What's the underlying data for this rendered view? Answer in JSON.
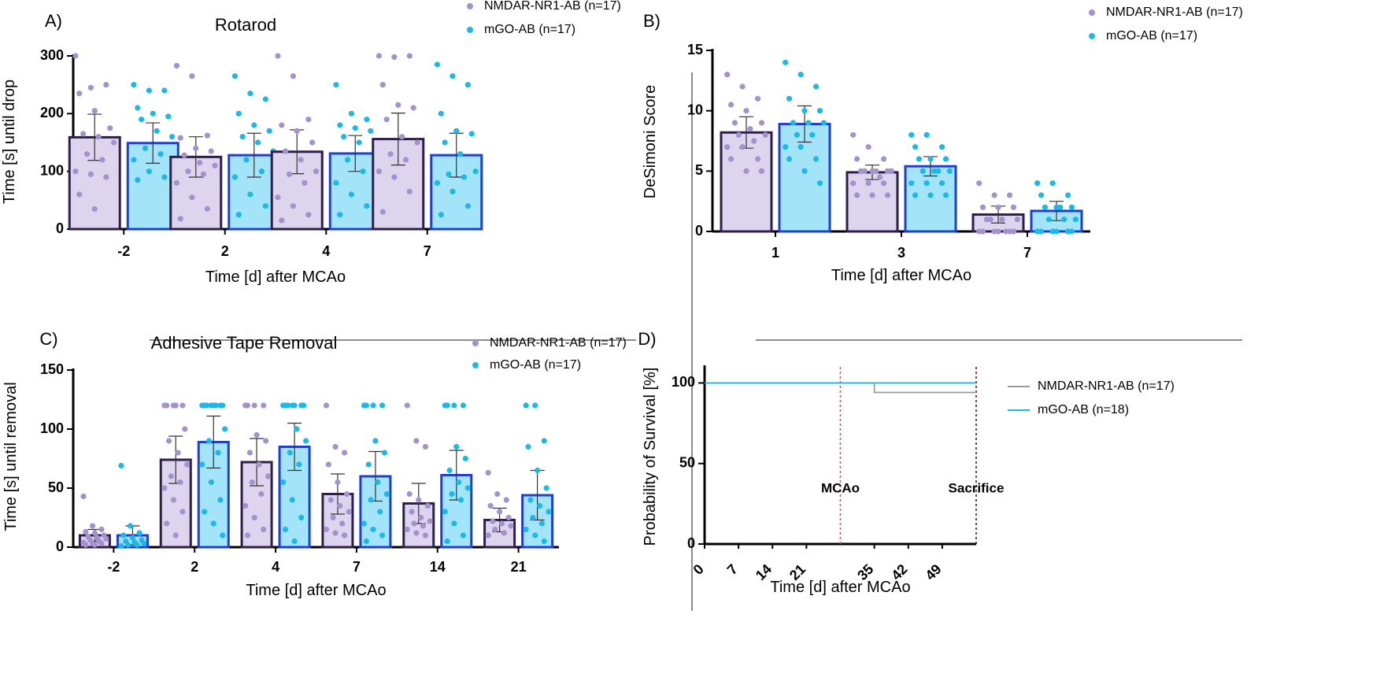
{
  "colors": {
    "purple": "#a392cc",
    "purple_fill": "#ddd4ee",
    "purple_edge": "#2e1f4a",
    "cyan": "#1eb8e6",
    "cyan_fill": "#a3e4f8",
    "cyan_edge": "#1c3fd6",
    "grey": "#9a9a9a",
    "red": "#e05060",
    "darkred": "#5a1820"
  },
  "chart_data": [
    {
      "panel": "A)",
      "type": "bar",
      "title": "Rotarod",
      "xlabel": "Time [d] after MCAo",
      "ylabel": "Time [s] until drop",
      "categories": [
        "-2",
        "2",
        "4",
        "7"
      ],
      "ylim": [
        0,
        300
      ],
      "yticks": [
        0,
        100,
        200,
        300
      ],
      "series": [
        {
          "name": "NMDAR-NR1-AB (n=17)",
          "values": [
            159,
            125,
            134,
            156
          ],
          "err": [
            40,
            35,
            38,
            45
          ],
          "points": [
            [
              300,
              245,
              250,
              235,
              205,
              175,
              165,
              160,
              150,
              130,
              120,
              100,
              95,
              90,
              60,
              35
            ],
            [
              283,
              265,
              162,
              158,
              140,
              135,
              128,
              115,
              110,
              100,
              95,
              80,
              55,
              35,
              18
            ],
            [
              300,
              265,
              190,
              180,
              170,
              150,
              135,
              120,
              100,
              95,
              80,
              55,
              40,
              25,
              15
            ],
            [
              300,
              298,
              300,
              250,
              215,
              210,
              190,
              160,
              150,
              130,
              120,
              100,
              90,
              65,
              30
            ]
          ]
        },
        {
          "name": "mGO-AB (n=17)",
          "values": [
            149,
            128,
            131,
            128
          ],
          "err": [
            35,
            38,
            31,
            38
          ],
          "points": [
            [
              250,
              240,
              240,
              210,
              200,
              195,
              190,
              170,
              160,
              140,
              130,
              120,
              100,
              90,
              85
            ],
            [
              265,
              235,
              225,
              200,
              180,
              170,
              160,
              150,
              135,
              120,
              100,
              90,
              60,
              40,
              25
            ],
            [
              250,
              200,
              190,
              180,
              175,
              170,
              160,
              150,
              130,
              120,
              100,
              80,
              60,
              40,
              25
            ],
            [
              285,
              265,
              250,
              200,
              170,
              165,
              150,
              130,
              100,
              95,
              90,
              80,
              65,
              40,
              25
            ]
          ]
        }
      ]
    },
    {
      "panel": "B)",
      "type": "bar",
      "title": "",
      "xlabel": "Time [d] after MCAo",
      "ylabel": "DeSimoni Score",
      "categories": [
        "1",
        "3",
        "7"
      ],
      "ylim": [
        0,
        15
      ],
      "yticks": [
        0,
        5,
        10,
        15
      ],
      "series": [
        {
          "name": "NMDAR-NR1-AB (n=17)",
          "values": [
            8.2,
            4.9,
            1.4
          ],
          "err": [
            1.3,
            0.6,
            0.7
          ],
          "points": [
            [
              13,
              12,
              11,
              10.5,
              10,
              9,
              9,
              8.5,
              8,
              8,
              7.5,
              7,
              7,
              6,
              6,
              5,
              5
            ],
            [
              8,
              7,
              6,
              6,
              5,
              5,
              5,
              5,
              5,
              5,
              4.5,
              4,
              4,
              4,
              3,
              3,
              3
            ],
            [
              4,
              3,
              3,
              2,
              2,
              2,
              1,
              1,
              1,
              1,
              0,
              0,
              0,
              0,
              0,
              0,
              0
            ]
          ]
        },
        {
          "name": "mGO-AB (n=17)",
          "values": [
            8.9,
            5.4,
            1.7
          ],
          "err": [
            1.5,
            0.8,
            0.8
          ],
          "points": [
            [
              14,
              13,
              12,
              11,
              10,
              10,
              9,
              9,
              9,
              8,
              8,
              7,
              7,
              6,
              6,
              5,
              4
            ],
            [
              8,
              8,
              7,
              7,
              6,
              6,
              6,
              5,
              5,
              5,
              5,
              4,
              4,
              4,
              3,
              3,
              3
            ],
            [
              4,
              4,
              3,
              3,
              2,
              2,
              2,
              2,
              1,
              1,
              1,
              0,
              0,
              0,
              0,
              0,
              0
            ]
          ]
        }
      ]
    },
    {
      "panel": "C)",
      "type": "bar",
      "title": "Adhesive Tape Removal",
      "xlabel": "Time [d] after MCAo",
      "ylabel": "Time [s] until removal",
      "categories": [
        "-2",
        "2",
        "4",
        "7",
        "14",
        "21"
      ],
      "ylim": [
        0,
        150
      ],
      "yticks": [
        0,
        50,
        100,
        150
      ],
      "series": [
        {
          "name": "NMDAR-NR1-AB (n=17)",
          "values": [
            10,
            74,
            72,
            45,
            37,
            23
          ],
          "err": [
            5,
            20,
            20,
            17,
            17,
            10
          ],
          "points": [
            [
              43,
              18,
              15,
              13,
              12,
              10,
              9,
              8,
              7,
              6,
              5,
              4,
              3,
              3,
              2,
              2
            ],
            [
              120,
              120,
              120,
              120,
              120,
              100,
              90,
              80,
              70,
              60,
              55,
              50,
              40,
              30,
              20,
              10
            ],
            [
              120,
              120,
              120,
              120,
              95,
              90,
              80,
              70,
              60,
              55,
              45,
              35,
              25,
              15,
              10
            ],
            [
              120,
              85,
              80,
              70,
              55,
              45,
              40,
              35,
              30,
              25,
              20,
              15,
              12,
              10
            ],
            [
              120,
              90,
              85,
              45,
              40,
              35,
              30,
              25,
              22,
              20,
              18,
              15,
              12,
              10
            ],
            [
              63,
              45,
              40,
              35,
              30,
              25,
              22,
              20,
              18,
              15,
              12,
              10
            ]
          ]
        },
        {
          "name": "mGO-AB (n=17)",
          "values": [
            10,
            89,
            85,
            60,
            61,
            44
          ],
          "err": [
            8,
            22,
            20,
            21,
            21,
            21
          ],
          "points": [
            [
              69,
              18,
              12,
              10,
              8,
              6,
              5,
              4,
              3,
              2,
              2,
              1
            ],
            [
              120,
              120,
              120,
              120,
              120,
              120,
              120,
              120,
              100,
              90,
              80,
              70,
              55,
              40,
              30,
              20,
              10
            ],
            [
              120,
              120,
              120,
              120,
              120,
              120,
              120,
              100,
              90,
              80,
              70,
              55,
              40,
              25,
              15,
              5
            ],
            [
              120,
              120,
              120,
              120,
              90,
              80,
              70,
              55,
              45,
              40,
              30,
              20,
              15,
              10,
              5
            ],
            [
              120,
              120,
              120,
              120,
              85,
              75,
              65,
              55,
              50,
              45,
              40,
              30,
              20,
              10,
              5
            ],
            [
              120,
              120,
              90,
              85,
              65,
              50,
              40,
              35,
              30,
              25,
              20,
              15,
              10,
              5
            ]
          ]
        }
      ]
    },
    {
      "panel": "D)",
      "type": "line",
      "title": "",
      "xlabel": "Time [d] after MCAo",
      "ylabel": "Probability of Survival [%]",
      "xticks": [
        "0",
        "7",
        "14",
        "21",
        "35",
        "42",
        "49"
      ],
      "xlim": [
        0,
        56
      ],
      "ylim": [
        0,
        110
      ],
      "yticks": [
        0,
        50,
        100
      ],
      "series": [
        {
          "name": "NMDAR-NR1-AB (n=17)",
          "x": [
            0,
            35,
            35,
            56
          ],
          "y": [
            100,
            100,
            94.1,
            94.1
          ]
        },
        {
          "name": "mGO-AB (n=18)",
          "x": [
            0,
            56
          ],
          "y": [
            100,
            100
          ]
        }
      ],
      "annotations": [
        {
          "text": "MCAo",
          "x": 28
        },
        {
          "text": "Sacrifice",
          "x": 56
        }
      ]
    }
  ]
}
